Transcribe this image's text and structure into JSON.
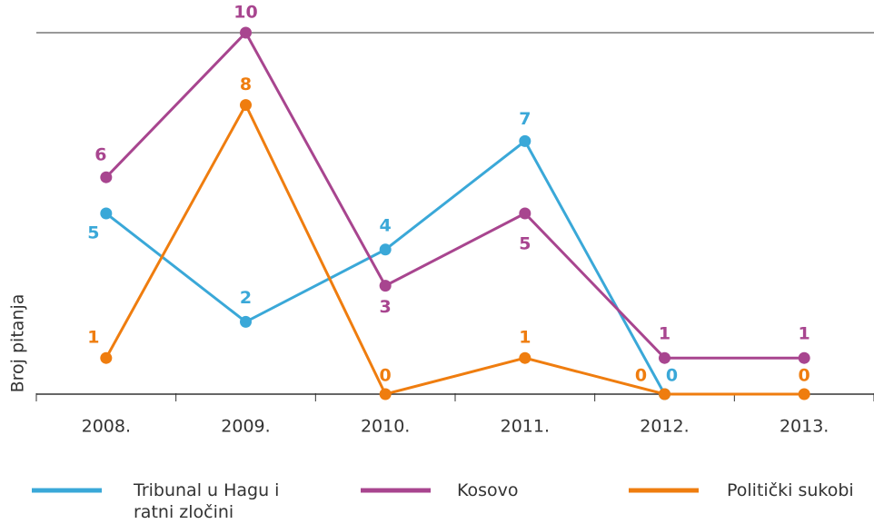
{
  "chart_data": {
    "type": "line",
    "y_label": "Broj pitanja",
    "categories": [
      "2008.",
      "2009.",
      "2010.",
      "2011.",
      "2012.",
      "2013."
    ],
    "series": [
      {
        "name": "Tribunal u Hagu i ratni zločini",
        "color": "#3aa8d8",
        "values": [
          5,
          2,
          4,
          7,
          0,
          null
        ]
      },
      {
        "name": "Kosovo",
        "color": "#a8458f",
        "values": [
          6,
          10,
          3,
          5,
          1,
          1
        ]
      },
      {
        "name": "Politički sukobi",
        "color": "#ef7d0f",
        "values": [
          1,
          8,
          0,
          1,
          0,
          0
        ]
      }
    ],
    "ylim": [
      0,
      10
    ]
  }
}
